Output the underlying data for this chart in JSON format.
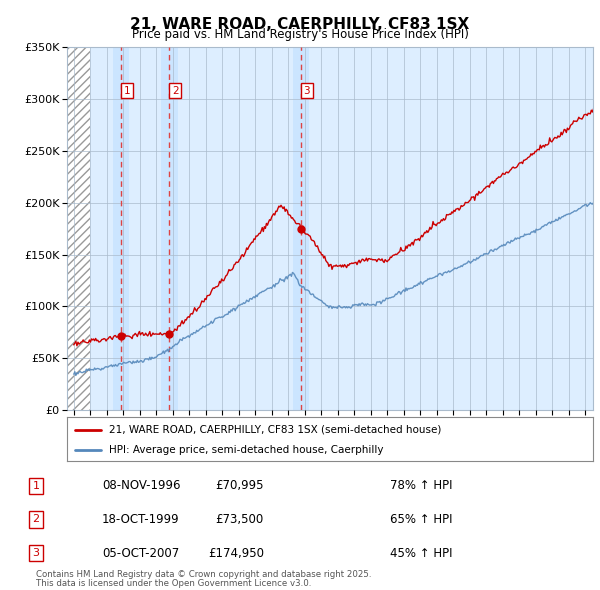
{
  "title": "21, WARE ROAD, CAERPHILLY, CF83 1SX",
  "subtitle": "Price paid vs. HM Land Registry's House Price Index (HPI)",
  "ylim": [
    0,
    350000
  ],
  "xlim": [
    1993.6,
    2025.5
  ],
  "yticks": [
    0,
    50000,
    100000,
    150000,
    200000,
    250000,
    300000,
    350000
  ],
  "transactions": [
    {
      "num": 1,
      "date": "08-NOV-1996",
      "price": 70995,
      "year": 1996.87,
      "hpi_pct": "78%",
      "direction": "↑"
    },
    {
      "num": 2,
      "date": "18-OCT-1999",
      "price": 73500,
      "year": 1999.8,
      "hpi_pct": "65%",
      "direction": "↑"
    },
    {
      "num": 3,
      "date": "05-OCT-2007",
      "price": 174950,
      "year": 2007.77,
      "hpi_pct": "45%",
      "direction": "↑"
    }
  ],
  "legend_line1": "21, WARE ROAD, CAERPHILLY, CF83 1SX (semi-detached house)",
  "legend_line2": "HPI: Average price, semi-detached house, Caerphilly",
  "footer1": "Contains HM Land Registry data © Crown copyright and database right 2025.",
  "footer2": "This data is licensed under the Open Government Licence v3.0.",
  "property_color": "#cc0000",
  "hpi_color": "#5588bb",
  "background_color": "#ffffff",
  "plot_bg_color": "#ddeeff",
  "grid_color": "#aabbcc",
  "dashed_line_color": "#dd4444",
  "hatch_end": 1995.0
}
